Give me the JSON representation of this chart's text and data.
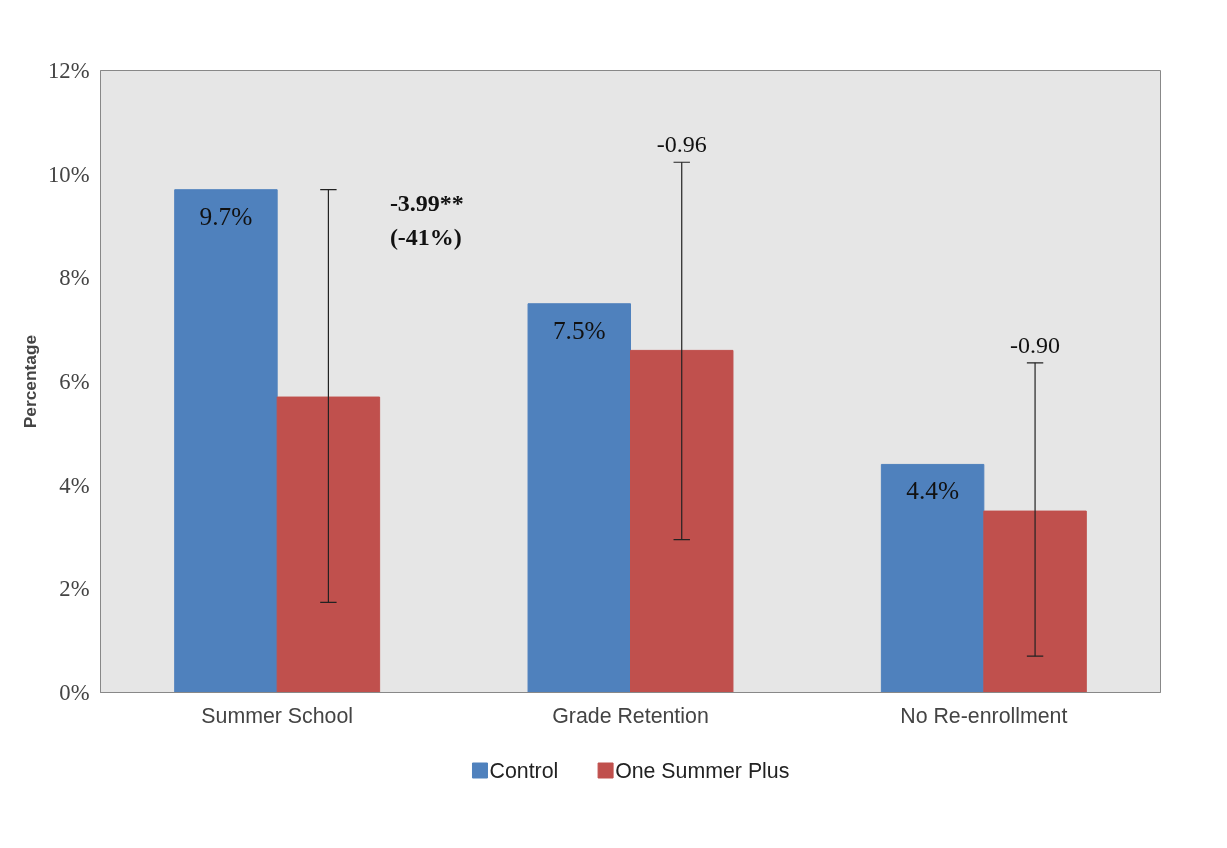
{
  "chart_data": {
    "type": "bar",
    "ylabel": "Percentage",
    "categories": [
      "Summer School",
      "Grade Retention",
      "No Re-enrollment"
    ],
    "series": [
      {
        "name": "Control",
        "color": "#4f81bd",
        "values": [
          9.7,
          7.5,
          4.4
        ],
        "value_labels": [
          "9.7%",
          "7.5%",
          "4.4%"
        ]
      },
      {
        "name": "One Summer Plus",
        "color": "#c0504d",
        "values": [
          5.7,
          6.6,
          3.5
        ],
        "errors": [
          [
            1.74,
            9.7
          ],
          [
            2.95,
            10.23
          ],
          [
            0.7,
            6.36
          ]
        ]
      }
    ],
    "ylim": [
      0,
      12
    ],
    "yticks": [
      {
        "value": 0,
        "label": "0%"
      },
      {
        "value": 2,
        "label": "2%"
      },
      {
        "value": 4,
        "label": "4%"
      },
      {
        "value": 6,
        "label": "6%"
      },
      {
        "value": 8,
        "label": "8%"
      },
      {
        "value": 10,
        "label": "10%"
      },
      {
        "value": 12,
        "label": "12%"
      }
    ],
    "annotations": [
      "-3.99**\n(-41%)",
      "-0.96",
      "-0.90"
    ],
    "grid": false,
    "legend": "bottom"
  }
}
